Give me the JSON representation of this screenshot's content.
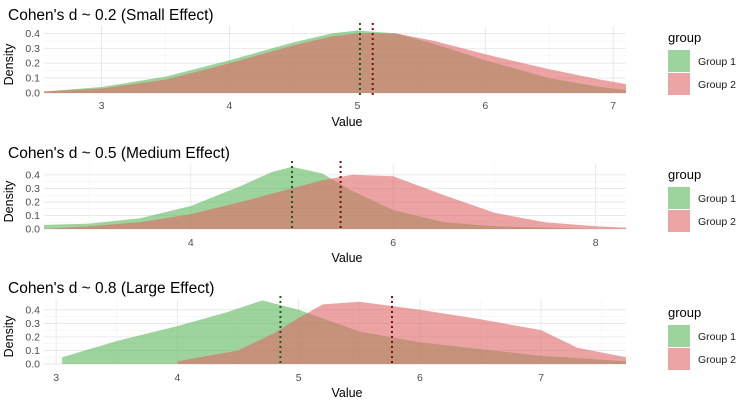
{
  "chart_data": [
    {
      "type": "area",
      "title": "Cohen's d ~ 0.2 (Small Effect)",
      "xlabel": "Value",
      "ylabel": "Density",
      "xlim": [
        2.55,
        7.1
      ],
      "ylim": [
        0,
        0.45
      ],
      "x_ticks": [
        3,
        4,
        5,
        6,
        7
      ],
      "y_ticks": [
        0.0,
        0.1,
        0.2,
        0.3,
        0.4
      ],
      "grid": true,
      "legend": {
        "title": "group",
        "position": "right"
      },
      "series": [
        {
          "name": "Group 1",
          "color": "#5cb85c",
          "x": [
            2.55,
            3.0,
            3.5,
            4.0,
            4.5,
            4.8,
            5.0,
            5.3,
            5.6,
            6.0,
            6.5,
            6.9,
            7.1
          ],
          "y": [
            0.01,
            0.04,
            0.11,
            0.22,
            0.34,
            0.4,
            0.42,
            0.4,
            0.33,
            0.22,
            0.1,
            0.04,
            0.02
          ],
          "mean": 5.02
        },
        {
          "name": "Group 2",
          "color": "#e06666",
          "x": [
            2.55,
            3.0,
            3.5,
            4.0,
            4.5,
            4.8,
            5.0,
            5.3,
            5.6,
            6.0,
            6.5,
            6.9,
            7.1
          ],
          "y": [
            0.01,
            0.03,
            0.09,
            0.2,
            0.32,
            0.38,
            0.4,
            0.4,
            0.35,
            0.26,
            0.16,
            0.09,
            0.06
          ],
          "mean": 5.12
        }
      ]
    },
    {
      "type": "area",
      "title": "Cohen's d ~ 0.5 (Medium Effect)",
      "xlabel": "Value",
      "ylabel": "Density",
      "xlim": [
        2.55,
        8.3
      ],
      "ylim": [
        0,
        0.48
      ],
      "x_ticks": [
        4,
        6,
        8
      ],
      "y_ticks": [
        0.0,
        0.1,
        0.2,
        0.3,
        0.4
      ],
      "grid": true,
      "legend": {
        "title": "group",
        "position": "right"
      },
      "series": [
        {
          "name": "Group 1",
          "color": "#5cb85c",
          "x": [
            2.55,
            3.0,
            3.5,
            4.0,
            4.5,
            4.8,
            5.0,
            5.3,
            5.6,
            6.0,
            6.5,
            7.0,
            7.5,
            8.0,
            8.3
          ],
          "y": [
            0.03,
            0.04,
            0.08,
            0.17,
            0.32,
            0.42,
            0.46,
            0.41,
            0.28,
            0.14,
            0.05,
            0.02,
            0.01,
            0.0,
            0.0
          ],
          "mean": 5.0
        },
        {
          "name": "Group 2",
          "color": "#e06666",
          "x": [
            2.55,
            3.0,
            3.5,
            4.0,
            4.5,
            4.8,
            5.0,
            5.3,
            5.6,
            6.0,
            6.5,
            7.0,
            7.5,
            8.0,
            8.3
          ],
          "y": [
            0.0,
            0.02,
            0.05,
            0.11,
            0.2,
            0.26,
            0.3,
            0.36,
            0.4,
            0.39,
            0.25,
            0.12,
            0.05,
            0.02,
            0.01
          ],
          "mean": 5.48
        }
      ]
    },
    {
      "type": "area",
      "title": "Cohen's d ~ 0.8 (Large Effect)",
      "xlabel": "Value",
      "ylabel": "Density",
      "xlim": [
        2.9,
        7.7
      ],
      "ylim": [
        0,
        0.48
      ],
      "x_ticks": [
        3,
        4,
        5,
        6,
        7
      ],
      "y_ticks": [
        0.0,
        0.1,
        0.2,
        0.3,
        0.4
      ],
      "grid": true,
      "legend": {
        "title": "group",
        "position": "right"
      },
      "series": [
        {
          "name": "Group 1",
          "color": "#5cb85c",
          "x": [
            3.05,
            3.5,
            4.0,
            4.4,
            4.7,
            5.0,
            5.5,
            6.0,
            6.5,
            7.0,
            7.7
          ],
          "y": [
            0.05,
            0.17,
            0.28,
            0.38,
            0.47,
            0.4,
            0.24,
            0.16,
            0.11,
            0.06,
            0.02
          ],
          "mean": 4.85
        },
        {
          "name": "Group 2",
          "color": "#e06666",
          "x": [
            4.0,
            4.5,
            4.8,
            5.0,
            5.2,
            5.5,
            6.0,
            6.5,
            7.0,
            7.3,
            7.7
          ],
          "y": [
            0.02,
            0.1,
            0.23,
            0.34,
            0.44,
            0.46,
            0.4,
            0.33,
            0.25,
            0.12,
            0.05
          ],
          "mean": 5.77
        }
      ]
    }
  ]
}
